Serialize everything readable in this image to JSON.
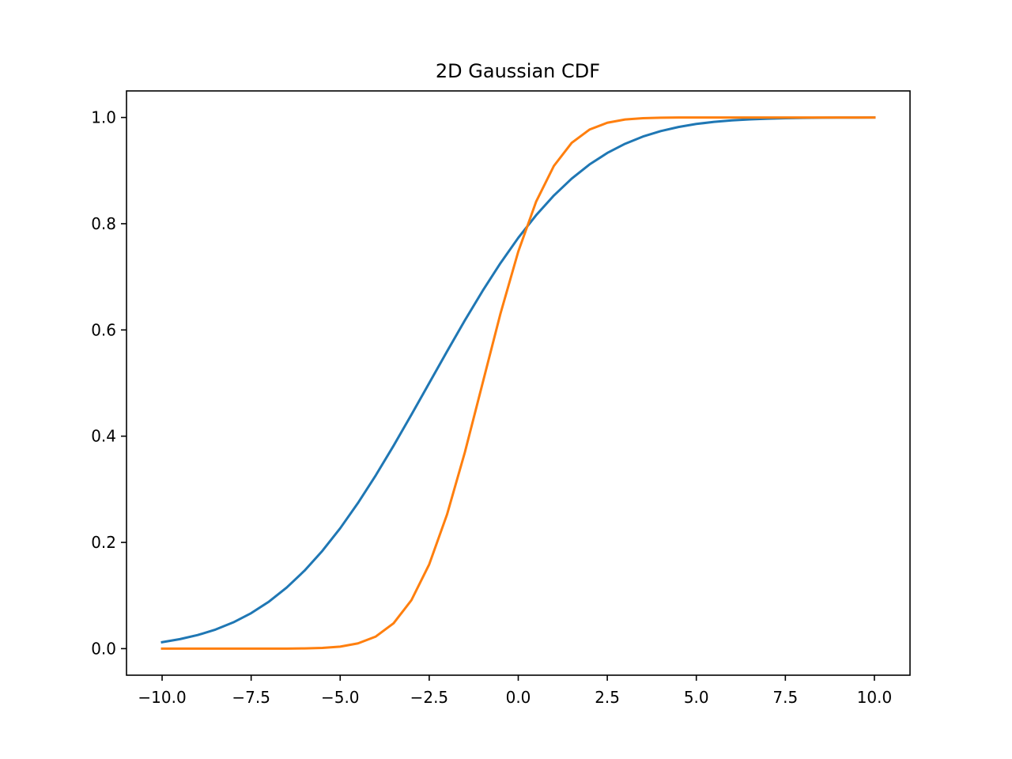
{
  "chart_data": {
    "type": "line",
    "title": "2D Gaussian CDF",
    "xlabel": "",
    "ylabel": "",
    "xlim": [
      -11.0,
      11.0
    ],
    "ylim": [
      -0.05,
      1.05
    ],
    "x_ticks": [
      -10.0,
      -7.5,
      -5.0,
      -2.5,
      0.0,
      2.5,
      5.0,
      7.5,
      10.0
    ],
    "x_tick_labels": [
      "−10.0",
      "−7.5",
      "−5.0",
      "−2.5",
      "0.0",
      "2.5",
      "5.0",
      "7.5",
      "10.0"
    ],
    "y_ticks": [
      0.0,
      0.2,
      0.4,
      0.6,
      0.8,
      1.0
    ],
    "y_tick_labels": [
      "0.0",
      "0.2",
      "0.4",
      "0.6",
      "0.8",
      "1.0"
    ],
    "grid": false,
    "x": [
      -10.0,
      -9.5,
      -9.0,
      -8.5,
      -8.0,
      -7.5,
      -7.0,
      -6.5,
      -6.0,
      -5.5,
      -5.0,
      -4.5,
      -4.0,
      -3.5,
      -3.0,
      -2.5,
      -2.0,
      -1.5,
      -1.0,
      -0.5,
      0.0,
      0.5,
      1.0,
      1.5,
      2.0,
      2.5,
      3.0,
      3.5,
      4.0,
      4.5,
      5.0,
      5.5,
      6.0,
      6.5,
      7.0,
      7.5,
      8.0,
      8.5,
      9.0,
      9.5,
      10.0
    ],
    "series": [
      {
        "color": "#1f77b4",
        "values": [
          0.0122,
          0.0179,
          0.0256,
          0.0359,
          0.0495,
          0.0668,
          0.0885,
          0.1151,
          0.1469,
          0.1841,
          0.2266,
          0.2743,
          0.3264,
          0.3821,
          0.4404,
          0.5,
          0.5596,
          0.6179,
          0.6736,
          0.7257,
          0.7734,
          0.8159,
          0.8531,
          0.8849,
          0.9115,
          0.9332,
          0.9505,
          0.9641,
          0.9744,
          0.9821,
          0.9878,
          0.9918,
          0.9946,
          0.9965,
          0.9978,
          0.9987,
          0.9992,
          0.9995,
          0.9997,
          0.9998,
          0.9999
        ]
      },
      {
        "color": "#ff7f0e",
        "values": [
          0.0,
          0.0,
          0.0,
          0.0,
          0.0,
          0.0,
          0.0,
          0.0001,
          0.0004,
          0.0013,
          0.0038,
          0.0099,
          0.0228,
          0.0478,
          0.0912,
          0.1587,
          0.2525,
          0.3694,
          0.5,
          0.6306,
          0.7475,
          0.8413,
          0.9088,
          0.9522,
          0.9772,
          0.9901,
          0.9962,
          0.9987,
          0.9996,
          0.9999,
          1.0,
          1.0,
          1.0,
          1.0,
          1.0,
          1.0,
          1.0,
          1.0,
          1.0,
          1.0,
          1.0
        ]
      }
    ]
  }
}
